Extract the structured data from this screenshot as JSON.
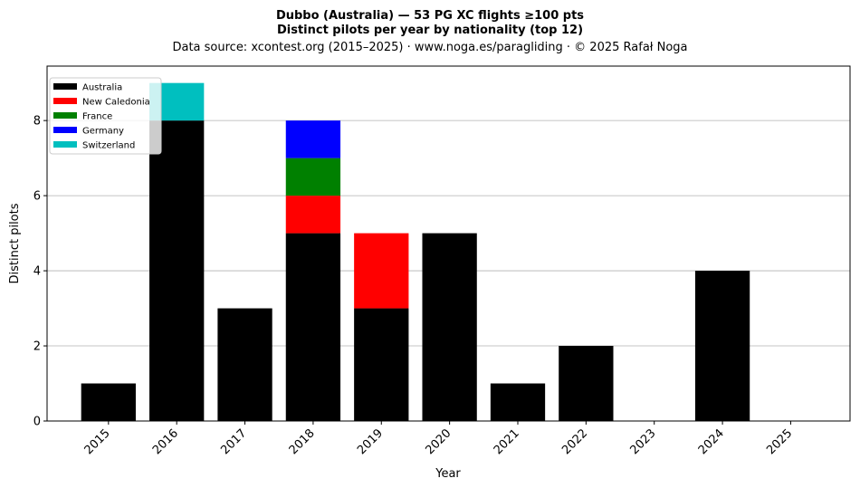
{
  "chart_data": {
    "type": "bar",
    "stacked": true,
    "title": "Dubbo (Australia)  —  53 PG XC flights ≥100 pts",
    "subtitle": "Distinct pilots per year by nationality (top 12)",
    "source_line": "Data source: xcontest.org (2015–2025)  ·  www.noga.es/paragliding  ·  © 2025 Rafał Noga",
    "xlabel": "Year",
    "ylabel": "Distinct pilots",
    "ylim": [
      0,
      9.45
    ],
    "yticks": [
      0,
      2,
      4,
      6,
      8
    ],
    "grid": "horizontal",
    "legend_position": "top-left",
    "categories": [
      "2015",
      "2016",
      "2017",
      "2018",
      "2019",
      "2020",
      "2021",
      "2022",
      "2023",
      "2024",
      "2025"
    ],
    "series": [
      {
        "name": "Australia",
        "color": "#000000",
        "values": [
          1,
          8,
          3,
          5,
          3,
          5,
          1,
          2,
          0,
          4,
          0
        ]
      },
      {
        "name": "New Caledonia",
        "color": "#ff0000",
        "values": [
          0,
          0,
          0,
          1,
          2,
          0,
          0,
          0,
          0,
          0,
          0
        ]
      },
      {
        "name": "France",
        "color": "#008000",
        "values": [
          0,
          0,
          0,
          1,
          0,
          0,
          0,
          0,
          0,
          0,
          0
        ]
      },
      {
        "name": "Germany",
        "color": "#0000ff",
        "values": [
          0,
          0,
          0,
          1,
          0,
          0,
          0,
          0,
          0,
          0,
          0
        ]
      },
      {
        "name": "Switzerland",
        "color": "#00bfbf",
        "values": [
          0,
          1,
          0,
          0,
          0,
          0,
          0,
          0,
          0,
          0,
          0
        ]
      }
    ]
  }
}
